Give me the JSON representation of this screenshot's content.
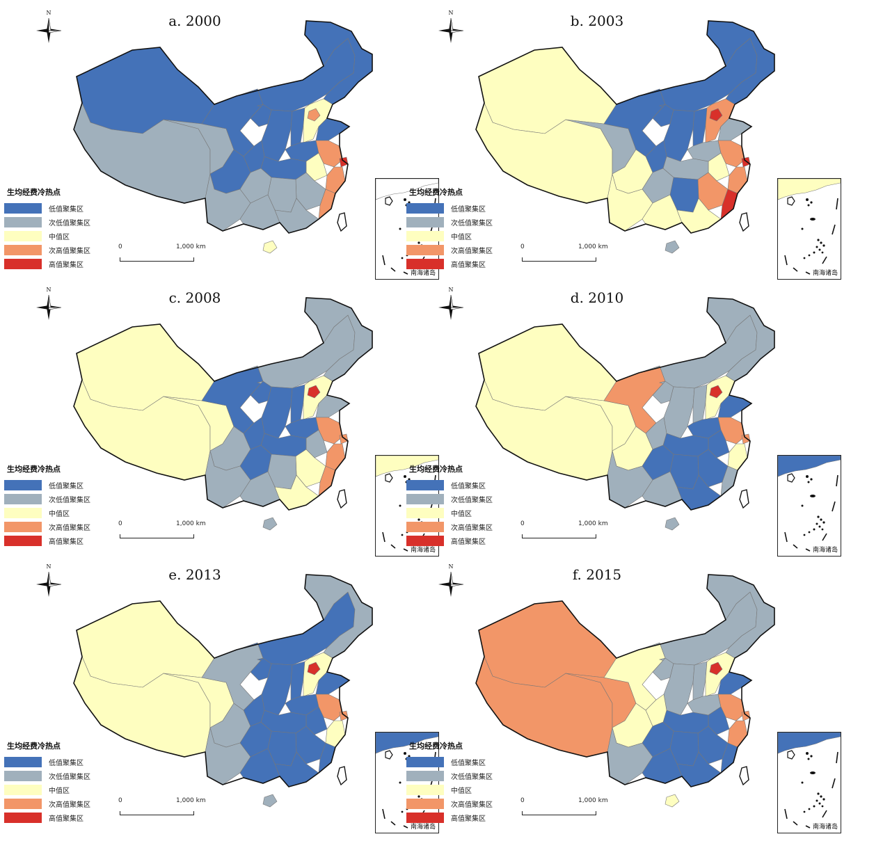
{
  "legend": {
    "title": "生均经费冷热点",
    "categories": [
      {
        "label": "低值聚集区",
        "color": "#4472b8"
      },
      {
        "label": "次低值聚集区",
        "color": "#a0b0bc"
      },
      {
        "label": "中值区",
        "color": "#fefec0"
      },
      {
        "label": "次高值聚集区",
        "color": "#f29668"
      },
      {
        "label": "高值聚集区",
        "color": "#d8302a"
      }
    ]
  },
  "scalebar": {
    "start": "0",
    "end": "1,000 km"
  },
  "inset_label": "南海诸岛",
  "compass_label": "N",
  "panels": [
    {
      "title": "a. 2000",
      "regions": {
        "northeast": "low",
        "inner_mongolia": "low",
        "xinjiang": "low",
        "qinghai": "sublow",
        "tibet": "sublow",
        "gansu": "low",
        "ningxia": "low",
        "shaanxi": "low",
        "sichuan": "low",
        "chongqing": "low",
        "yunnan": "sublow",
        "guizhou": "sublow",
        "guangxi": "sublow",
        "guangdong": "sublow",
        "hainan": "mid",
        "hunan": "sublow",
        "hubei": "low",
        "henan": "low",
        "shanxi": "low",
        "hebei": "mid",
        "beijing": "subhigh",
        "shandong": "low",
        "jiangsu": "subhigh",
        "shanghai": "high",
        "zhejiang": "subhigh",
        "anhui": "mid",
        "jiangxi": "sublow",
        "fujian": "subhigh",
        "taiwan": "blank",
        "inset": "blank"
      }
    },
    {
      "title": "b. 2003",
      "regions": {
        "northeast": "low",
        "inner_mongolia": "low",
        "xinjiang": "mid",
        "qinghai": "sublow",
        "tibet": "mid",
        "gansu": "low",
        "ningxia": "low",
        "shaanxi": "low",
        "sichuan": "mid",
        "chongqing": "low",
        "yunnan": "mid",
        "guizhou": "sublow",
        "guangxi": "mid",
        "guangdong": "mid",
        "hainan": "sublow",
        "hunan": "low",
        "hubei": "sublow",
        "henan": "sublow",
        "shanxi": "low",
        "hebei": "subhigh",
        "beijing": "high",
        "shandong": "sublow",
        "jiangsu": "subhigh",
        "shanghai": "high",
        "zhejiang": "subhigh",
        "anhui": "mid",
        "jiangxi": "subhigh",
        "fujian": "high",
        "taiwan": "blank",
        "inset": "mid"
      }
    },
    {
      "title": "c. 2008",
      "regions": {
        "northeast": "sublow",
        "inner_mongolia": "sublow",
        "xinjiang": "mid",
        "qinghai": "mid",
        "tibet": "mid",
        "gansu": "low",
        "ningxia": "low",
        "shaanxi": "low",
        "sichuan": "sublow",
        "chongqing": "low",
        "yunnan": "sublow",
        "guizhou": "low",
        "guangxi": "sublow",
        "guangdong": "mid",
        "hainan": "sublow",
        "hunan": "sublow",
        "hubei": "low",
        "henan": "low",
        "shanxi": "low",
        "hebei": "mid",
        "beijing": "high",
        "shandong": "sublow",
        "jiangsu": "subhigh",
        "shanghai": "subhigh",
        "zhejiang": "subhigh",
        "anhui": "sublow",
        "jiangxi": "mid",
        "fujian": "subhigh",
        "taiwan": "blank",
        "inset": "mid"
      }
    },
    {
      "title": "d. 2010",
      "regions": {
        "northeast": "sublow",
        "inner_mongolia": "sublow",
        "xinjiang": "mid",
        "qinghai": "mid",
        "tibet": "mid",
        "gansu": "subhigh",
        "ningxia": "sublow",
        "shaanxi": "sublow",
        "sichuan": "mid",
        "chongqing": "sublow",
        "yunnan": "sublow",
        "guizhou": "low",
        "guangxi": "sublow",
        "guangdong": "low",
        "hainan": "sublow",
        "hunan": "low",
        "hubei": "low",
        "henan": "low",
        "shanxi": "sublow",
        "hebei": "mid",
        "beijing": "high",
        "shandong": "low",
        "jiangsu": "subhigh",
        "shanghai": "subhigh",
        "zhejiang": "mid",
        "anhui": "low",
        "jiangxi": "low",
        "fujian": "sublow",
        "taiwan": "blank",
        "inset": "low"
      }
    },
    {
      "title": "e. 2013",
      "regions": {
        "northeast": "sublow",
        "inner_mongolia": "low",
        "xinjiang": "mid",
        "qinghai": "mid",
        "tibet": "mid",
        "gansu": "sublow",
        "ningxia": "low",
        "shaanxi": "low",
        "sichuan": "sublow",
        "chongqing": "low",
        "yunnan": "sublow",
        "guizhou": "low",
        "guangxi": "low",
        "guangdong": "low",
        "hainan": "sublow",
        "hunan": "low",
        "hubei": "low",
        "henan": "low",
        "shanxi": "low",
        "hebei": "mid",
        "beijing": "high",
        "shandong": "low",
        "jiangsu": "subhigh",
        "shanghai": "subhigh",
        "zhejiang": "mid",
        "anhui": "low",
        "jiangxi": "low",
        "fujian": "low",
        "taiwan": "blank",
        "inset": "low"
      }
    },
    {
      "title": "f. 2015",
      "regions": {
        "northeast": "sublow",
        "inner_mongolia": "sublow",
        "xinjiang": "subhigh",
        "qinghai": "subhigh",
        "tibet": "subhigh",
        "gansu": "mid",
        "ningxia": "sublow",
        "shaanxi": "sublow",
        "sichuan": "mid",
        "chongqing": "mid",
        "yunnan": "sublow",
        "guizhou": "low",
        "guangxi": "low",
        "guangdong": "low",
        "hainan": "mid",
        "hunan": "low",
        "hubei": "low",
        "henan": "sublow",
        "shanxi": "sublow",
        "hebei": "mid",
        "beijing": "high",
        "shandong": "low",
        "jiangsu": "subhigh",
        "shanghai": "subhigh",
        "zhejiang": "subhigh",
        "anhui": "low",
        "jiangxi": "low",
        "fujian": "low",
        "taiwan": "blank",
        "inset": "low"
      }
    }
  ]
}
